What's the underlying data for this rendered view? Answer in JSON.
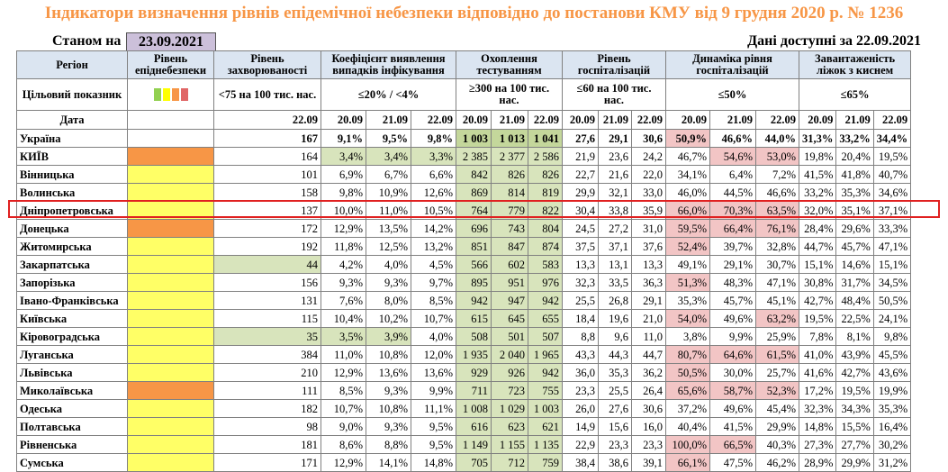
{
  "title": "Індикатори визначення рівнів епідемічної небезпеки відповідно до постанови КМУ від 9 грудня 2020 р. № 1236",
  "as_of_label": "Станом на",
  "as_of_date": "23.09.2021",
  "available_label": "Дані доступні за",
  "available_date": "22.09.2021",
  "colors": {
    "title": "#f79646",
    "yellow": "#ffff66",
    "orange": "#f79646",
    "green": "#d8e4bc",
    "pink": "#f2c5c5",
    "highlight": "#e02020"
  },
  "legend_colors": [
    "#92d050",
    "#ffff00",
    "#f79646",
    "#e06666"
  ],
  "headers": {
    "region": "Регіон",
    "level": "Рівень епіднебезпеки",
    "incidence": "Рівень захворюваності",
    "coef": "Коефіцієнт виявлення випадків інфікування",
    "testing": "Охоплення тестуванням",
    "hosp": "Рівень госпіталізацій",
    "dyn": "Динаміка рівня госпіталізацій",
    "oxy": "Завантаженість ліжок з киснем"
  },
  "target": {
    "label": "Цільовий показник",
    "incidence": "<75 на 100 тис. нас.",
    "coef": "≤20% / <4%",
    "testing": "≥300 на 100 тис. нас.",
    "hosp": "≤60 на 100 тис. нас.",
    "dyn": "≤50%",
    "oxy": "≤65%"
  },
  "date_row": {
    "label": "Дата",
    "incidence": "22.09",
    "dates": [
      "20.09",
      "21.09",
      "22.09"
    ]
  },
  "rows": [
    {
      "region": "Україна",
      "level": "w",
      "inc": "167",
      "c": [
        "9,1%",
        "9,5%",
        "9,8%"
      ],
      "t": [
        "1 003",
        "1 013",
        "1 041"
      ],
      "h": [
        "27,6",
        "29,1",
        "30,6"
      ],
      "d": [
        "50,9%",
        "46,6%",
        "44,0%"
      ],
      "o": [
        "31,3%",
        "33,2%",
        "34,4%"
      ]
    },
    {
      "region": "КИЇВ",
      "level": "o",
      "inc": "164",
      "c": [
        "3,4%",
        "3,4%",
        "3,3%"
      ],
      "t": [
        "2 385",
        "2 377",
        "2 586"
      ],
      "h": [
        "21,9",
        "23,6",
        "24,2"
      ],
      "d": [
        "46,7%",
        "54,6%",
        "53,0%"
      ],
      "o": [
        "19,8%",
        "20,4%",
        "19,5%"
      ]
    },
    {
      "region": "Вінницька",
      "level": "y",
      "inc": "101",
      "c": [
        "6,9%",
        "6,7%",
        "6,6%"
      ],
      "t": [
        "842",
        "826",
        "826"
      ],
      "h": [
        "22,7",
        "21,6",
        "22,0"
      ],
      "d": [
        "34,1%",
        "6,4%",
        "7,2%"
      ],
      "o": [
        "41,5%",
        "41,8%",
        "40,7%"
      ]
    },
    {
      "region": "Волинська",
      "level": "y",
      "inc": "158",
      "c": [
        "9,8%",
        "10,9%",
        "12,6%"
      ],
      "t": [
        "869",
        "814",
        "819"
      ],
      "h": [
        "29,9",
        "32,1",
        "33,0"
      ],
      "d": [
        "46,0%",
        "44,5%",
        "46,6%"
      ],
      "o": [
        "33,2%",
        "35,3%",
        "34,6%"
      ]
    },
    {
      "region": "Дніпропетровська",
      "level": "y",
      "inc": "137",
      "c": [
        "10,0%",
        "11,0%",
        "10,5%"
      ],
      "t": [
        "764",
        "779",
        "822"
      ],
      "h": [
        "30,4",
        "33,8",
        "35,9"
      ],
      "d": [
        "66,0%",
        "70,3%",
        "63,5%"
      ],
      "o": [
        "32,0%",
        "35,1%",
        "37,1%"
      ]
    },
    {
      "region": "Донецька",
      "level": "o",
      "inc": "172",
      "c": [
        "12,9%",
        "13,5%",
        "14,2%"
      ],
      "t": [
        "696",
        "743",
        "804"
      ],
      "h": [
        "24,5",
        "27,2",
        "31,0"
      ],
      "d": [
        "59,5%",
        "66,4%",
        "76,1%"
      ],
      "o": [
        "28,4%",
        "29,6%",
        "33,3%"
      ]
    },
    {
      "region": "Житомирська",
      "level": "y",
      "inc": "192",
      "c": [
        "11,8%",
        "12,5%",
        "13,2%"
      ],
      "t": [
        "851",
        "847",
        "874"
      ],
      "h": [
        "37,5",
        "37,1",
        "37,6"
      ],
      "d": [
        "52,4%",
        "39,7%",
        "32,8%"
      ],
      "o": [
        "44,7%",
        "45,7%",
        "47,1%"
      ]
    },
    {
      "region": "Закарпатська",
      "level": "y",
      "inc": "44",
      "c": [
        "4,2%",
        "4,0%",
        "4,5%"
      ],
      "t": [
        "566",
        "602",
        "583"
      ],
      "h": [
        "13,3",
        "13,1",
        "13,3"
      ],
      "d": [
        "49,1%",
        "29,1%",
        "30,7%"
      ],
      "o": [
        "15,1%",
        "14,6%",
        "15,1%"
      ]
    },
    {
      "region": "Запорізька",
      "level": "y",
      "inc": "156",
      "c": [
        "9,3%",
        "9,3%",
        "9,7%"
      ],
      "t": [
        "895",
        "951",
        "976"
      ],
      "h": [
        "32,3",
        "33,5",
        "36,3"
      ],
      "d": [
        "51,3%",
        "48,3%",
        "47,1%"
      ],
      "o": [
        "30,8%",
        "31,7%",
        "34,5%"
      ]
    },
    {
      "region": "Івано-Франківська",
      "level": "y",
      "inc": "131",
      "c": [
        "7,6%",
        "8,0%",
        "8,5%"
      ],
      "t": [
        "942",
        "947",
        "942"
      ],
      "h": [
        "25,5",
        "26,8",
        "29,1"
      ],
      "d": [
        "35,3%",
        "45,7%",
        "45,1%"
      ],
      "o": [
        "42,7%",
        "48,4%",
        "50,5%"
      ]
    },
    {
      "region": "Київська",
      "level": "y",
      "inc": "115",
      "c": [
        "10,4%",
        "10,2%",
        "10,7%"
      ],
      "t": [
        "615",
        "645",
        "655"
      ],
      "h": [
        "18,4",
        "19,6",
        "21,0"
      ],
      "d": [
        "54,0%",
        "49,6%",
        "63,2%"
      ],
      "o": [
        "19,5%",
        "22,5%",
        "24,1%"
      ]
    },
    {
      "region": "Кіровоградська",
      "level": "y",
      "inc": "35",
      "c": [
        "3,5%",
        "3,9%",
        "4,0%"
      ],
      "t": [
        "508",
        "501",
        "507"
      ],
      "h": [
        "8,8",
        "9,6",
        "11,0"
      ],
      "d": [
        "3,8%",
        "9,9%",
        "25,9%"
      ],
      "o": [
        "7,8%",
        "8,1%",
        "9,8%"
      ]
    },
    {
      "region": "Луганська",
      "level": "y",
      "inc": "384",
      "c": [
        "11,0%",
        "10,8%",
        "12,0%"
      ],
      "t": [
        "1 935",
        "2 040",
        "1 965"
      ],
      "h": [
        "43,3",
        "44,3",
        "44,7"
      ],
      "d": [
        "80,7%",
        "64,6%",
        "61,5%"
      ],
      "o": [
        "41,0%",
        "43,9%",
        "45,5%"
      ]
    },
    {
      "region": "Львівська",
      "level": "y",
      "inc": "210",
      "c": [
        "12,9%",
        "13,6%",
        "13,6%"
      ],
      "t": [
        "929",
        "926",
        "942"
      ],
      "h": [
        "36,0",
        "35,3",
        "36,2"
      ],
      "d": [
        "50,5%",
        "30,0%",
        "25,7%"
      ],
      "o": [
        "41,6%",
        "42,7%",
        "43,6%"
      ]
    },
    {
      "region": "Миколаївська",
      "level": "o",
      "inc": "111",
      "c": [
        "8,5%",
        "9,3%",
        "9,9%"
      ],
      "t": [
        "711",
        "723",
        "755"
      ],
      "h": [
        "23,3",
        "25,5",
        "26,4"
      ],
      "d": [
        "65,6%",
        "58,7%",
        "52,3%"
      ],
      "o": [
        "17,2%",
        "19,5%",
        "19,9%"
      ]
    },
    {
      "region": "Одеська",
      "level": "y",
      "inc": "182",
      "c": [
        "10,7%",
        "10,8%",
        "11,1%"
      ],
      "t": [
        "1 008",
        "1 029",
        "1 003"
      ],
      "h": [
        "26,0",
        "27,6",
        "30,6"
      ],
      "d": [
        "37,2%",
        "49,6%",
        "45,4%"
      ],
      "o": [
        "32,3%",
        "34,3%",
        "35,3%"
      ]
    },
    {
      "region": "Полтавська",
      "level": "y",
      "inc": "98",
      "c": [
        "9,0%",
        "9,3%",
        "9,5%"
      ],
      "t": [
        "616",
        "623",
        "621"
      ],
      "h": [
        "14,9",
        "15,6",
        "16,0"
      ],
      "d": [
        "40,4%",
        "41,5%",
        "29,9%"
      ],
      "o": [
        "14,8%",
        "15,5%",
        "16,4%"
      ]
    },
    {
      "region": "Рівненська",
      "level": "y",
      "inc": "181",
      "c": [
        "8,6%",
        "8,8%",
        "9,5%"
      ],
      "t": [
        "1 149",
        "1 155",
        "1 135"
      ],
      "h": [
        "22,9",
        "23,3",
        "23,3"
      ],
      "d": [
        "100,0%",
        "66,5%",
        "40,3%"
      ],
      "o": [
        "27,3%",
        "27,7%",
        "30,2%"
      ]
    },
    {
      "region": "Сумська",
      "level": "y",
      "inc": "171",
      "c": [
        "12,9%",
        "14,1%",
        "14,8%"
      ],
      "t": [
        "705",
        "712",
        "759"
      ],
      "h": [
        "38,4",
        "38,6",
        "39,1"
      ],
      "d": [
        "66,1%",
        "47,5%",
        "46,2%"
      ],
      "o": [
        "28,9%",
        "29,9%",
        "31,2%"
      ]
    }
  ]
}
